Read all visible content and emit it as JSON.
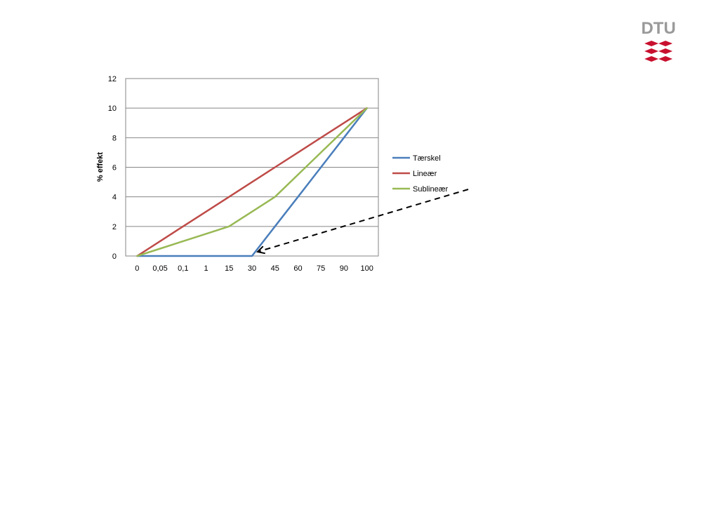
{
  "logo": {
    "text": "DTU",
    "color": "#9a9a9a",
    "mark_color": "#c8102e"
  },
  "chart_data": {
    "type": "line",
    "categories": [
      "0",
      "0,05",
      "0,1",
      "1",
      "15",
      "30",
      "45",
      "60",
      "75",
      "90",
      "100"
    ],
    "ylabel": "% effekt",
    "xlabel": "",
    "ylim": [
      0,
      12
    ],
    "yticks": [
      "0",
      "2",
      "4",
      "6",
      "8",
      "10",
      "12"
    ],
    "grid": true,
    "legend_position": "right",
    "series": [
      {
        "name": "Tærskel",
        "color": "#4a7ebb",
        "values": [
          0,
          0,
          0,
          0,
          0,
          0,
          2,
          4,
          6,
          8,
          10
        ]
      },
      {
        "name": "Lineær",
        "color": "#be4b48",
        "values": [
          0,
          1,
          2,
          3,
          4,
          5,
          6,
          7,
          8,
          9,
          10
        ]
      },
      {
        "name": "Sublineær",
        "color": "#98b954",
        "values": [
          0,
          0.5,
          1,
          1.5,
          2,
          3,
          4,
          5.5,
          7,
          8.5,
          10
        ]
      }
    ],
    "annotation": {
      "type": "dashed-arrow",
      "points_to_category": "30",
      "points_to_value": 0
    }
  }
}
